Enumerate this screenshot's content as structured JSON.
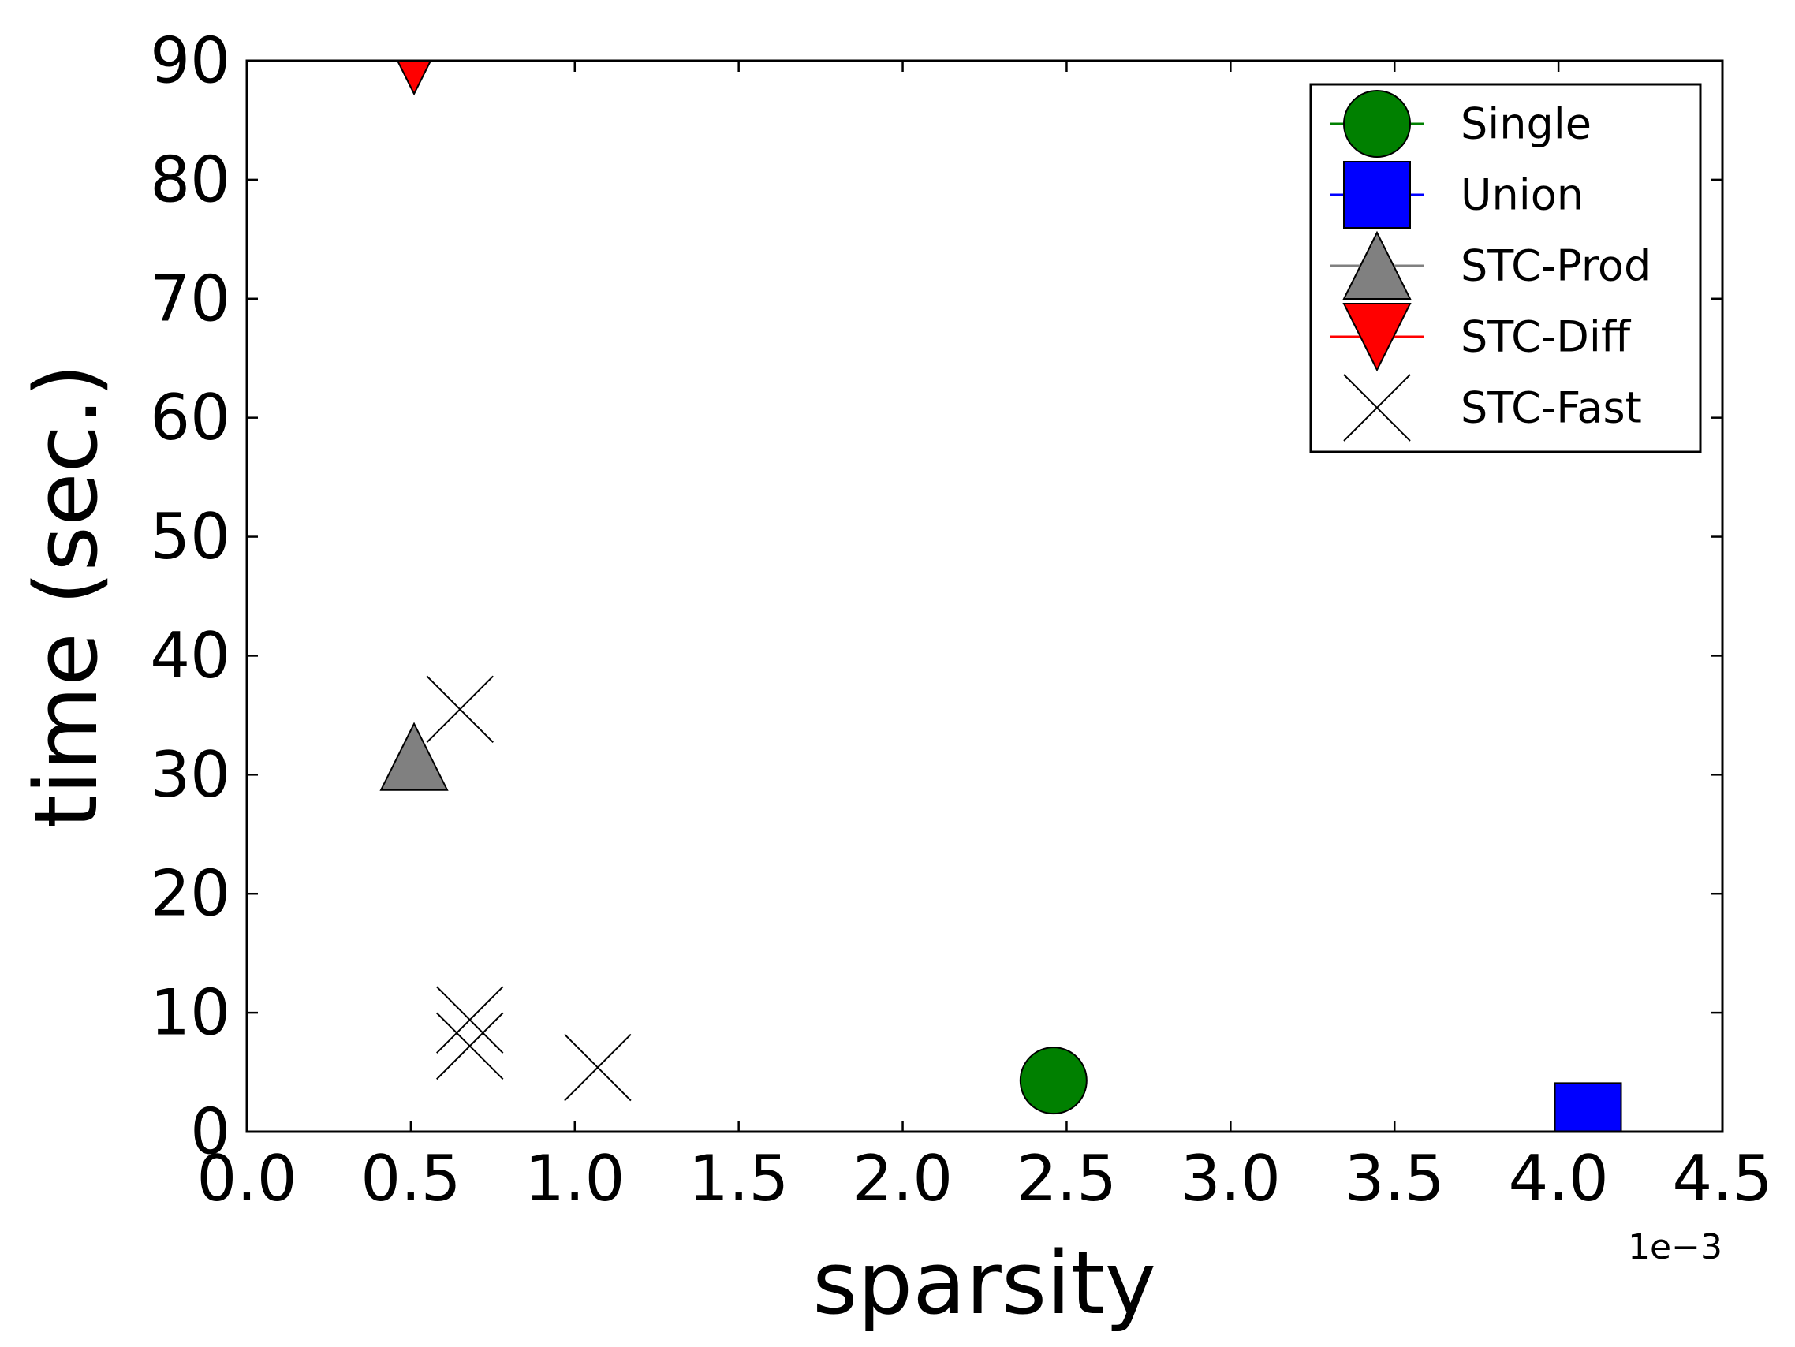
{
  "chart_data": {
    "type": "scatter",
    "title": "",
    "xlabel": "sparsity",
    "ylabel": "time (sec.)",
    "x_offset_label": "1e−3",
    "xlim": [
      0.0,
      4.5
    ],
    "ylim": [
      0,
      90
    ],
    "x_ticks": [
      0.0,
      0.5,
      1.0,
      1.5,
      2.0,
      2.5,
      3.0,
      3.5,
      4.0,
      4.5
    ],
    "x_tick_labels": [
      "0.0",
      "0.5",
      "1.0",
      "1.5",
      "2.0",
      "2.5",
      "3.0",
      "3.5",
      "4.0",
      "4.5"
    ],
    "y_ticks": [
      0,
      10,
      20,
      30,
      40,
      50,
      60,
      70,
      80,
      90
    ],
    "y_tick_labels": [
      "0",
      "10",
      "20",
      "30",
      "40",
      "50",
      "60",
      "70",
      "80",
      "90"
    ],
    "grid": false,
    "legend_position": "top-right",
    "series": [
      {
        "name": "Single",
        "marker": "circle",
        "color": "#008000",
        "points": [
          {
            "x": 2.46,
            "y": 4.3
          }
        ]
      },
      {
        "name": "Union",
        "marker": "square",
        "color": "#0000ff",
        "points": [
          {
            "x": 4.09,
            "y": 1.3
          }
        ]
      },
      {
        "name": "STC-Prod",
        "marker": "triangle-up",
        "color": "#808080",
        "points": [
          {
            "x": 0.51,
            "y": 31.5
          }
        ]
      },
      {
        "name": "STC-Diff",
        "marker": "triangle-down",
        "color": "#ff0000",
        "points": [
          {
            "x": 0.51,
            "y": 90.0
          }
        ]
      },
      {
        "name": "STC-Fast",
        "marker": "x",
        "color": "#000000",
        "points": [
          {
            "x": 0.65,
            "y": 35.5
          },
          {
            "x": 0.68,
            "y": 9.4
          },
          {
            "x": 0.68,
            "y": 7.2
          },
          {
            "x": 1.07,
            "y": 5.4
          }
        ]
      }
    ]
  }
}
